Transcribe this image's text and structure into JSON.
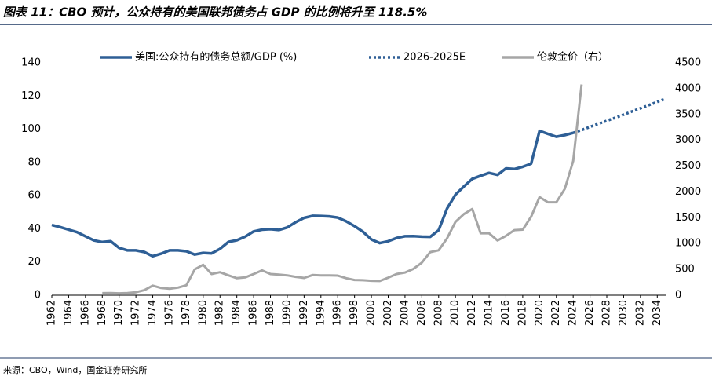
{
  "chart_data": {
    "type": "line",
    "title": "图表 11：CBO 预计，公众持有的美国联邦债务占 GDP 的比例将升至 118.5%",
    "source": "来源：CBO，Wind，国金证券研究所",
    "legend": "top",
    "xlim": [
      1962,
      2035
    ],
    "xticks": [
      1962,
      1964,
      1966,
      1968,
      1970,
      1972,
      1974,
      1976,
      1978,
      1980,
      1982,
      1984,
      1986,
      1988,
      1990,
      1992,
      1994,
      1996,
      1998,
      2000,
      2002,
      2004,
      2006,
      2008,
      2010,
      2012,
      2014,
      2016,
      2018,
      2020,
      2022,
      2024,
      2026,
      2028,
      2030,
      2032,
      2034
    ],
    "ylim": [
      0,
      140
    ],
    "yticks": [
      0,
      20,
      40,
      60,
      80,
      100,
      120,
      140
    ],
    "y2lim": [
      0,
      4500
    ],
    "y2ticks": [
      0,
      500,
      1000,
      1500,
      2000,
      2500,
      3000,
      3500,
      4000,
      4500
    ],
    "series": [
      {
        "name": "美国:公众持有的债务总额/GDP (%)",
        "color": "#2e5f96",
        "style": "solid",
        "x": [
          1962,
          1963,
          1964,
          1965,
          1966,
          1967,
          1968,
          1969,
          1970,
          1971,
          1972,
          1973,
          1974,
          1975,
          1976,
          1977,
          1978,
          1979,
          1980,
          1981,
          1982,
          1983,
          1984,
          1985,
          1986,
          1987,
          1988,
          1989,
          1990,
          1991,
          1992,
          1993,
          1994,
          1995,
          1996,
          1997,
          1998,
          1999,
          2000,
          2001,
          2002,
          2003,
          2004,
          2005,
          2006,
          2007,
          2008,
          2009,
          2010,
          2011,
          2012,
          2013,
          2014,
          2015,
          2016,
          2017,
          2018,
          2019,
          2020,
          2021,
          2022,
          2023,
          2024
        ],
        "values": [
          42.3,
          41,
          39.5,
          38,
          35.5,
          33,
          32,
          32.5,
          28.5,
          27,
          27,
          26,
          23.5,
          25,
          27,
          27,
          26.5,
          24.5,
          25.5,
          25.2,
          27.9,
          32.1,
          33.1,
          35.3,
          38.4,
          39.5,
          39.8,
          39.3,
          40.8,
          44,
          46.6,
          47.8,
          47.7,
          47.5,
          46.8,
          44.5,
          41.6,
          38.2,
          33.6,
          31.4,
          32.5,
          34.5,
          35.5,
          35.6,
          35.3,
          35.2,
          39.2,
          52.2,
          60.6,
          65.5,
          70.1,
          72,
          73.7,
          72.5,
          76.4,
          76,
          77.4,
          79.2,
          99,
          97.2,
          95.5,
          96.5,
          97.8
        ]
      },
      {
        "name": "2026-2025E",
        "color": "#2e5f96",
        "style": "dotted",
        "x": [
          2024,
          2025,
          2026,
          2027,
          2028,
          2029,
          2030,
          2031,
          2032,
          2033,
          2034,
          2035
        ],
        "values": [
          97.8,
          99.5,
          101.4,
          103.3,
          105.1,
          106.9,
          108.8,
          110.7,
          112.6,
          114.5,
          116.5,
          118.5
        ]
      },
      {
        "name": "伦敦金价（右）",
        "color": "#a6a6a6",
        "style": "solid",
        "axis": "y2",
        "x": [
          1968,
          1969,
          1970,
          1971,
          1972,
          1973,
          1974,
          1975,
          1976,
          1977,
          1978,
          1979,
          1980,
          1981,
          1982,
          1983,
          1984,
          1985,
          1986,
          1987,
          1988,
          1989,
          1990,
          1991,
          1992,
          1993,
          1994,
          1995,
          1996,
          1997,
          1998,
          1999,
          2000,
          2001,
          2002,
          2003,
          2004,
          2005,
          2006,
          2007,
          2008,
          2009,
          2010,
          2011,
          2012,
          2013,
          2014,
          2015,
          2016,
          2017,
          2018,
          2019,
          2020,
          2021,
          2022,
          2023,
          2024,
          2025
        ],
        "values": [
          39,
          41,
          36,
          41,
          58,
          97,
          185,
          140,
          125,
          148,
          193,
          500,
          590,
          410,
          445,
          385,
          330,
          345,
          410,
          480,
          410,
          400,
          385,
          355,
          335,
          390,
          385,
          385,
          380,
          330,
          295,
          290,
          280,
          275,
          340,
          410,
          440,
          510,
          630,
          835,
          870,
          1100,
          1420,
          1570,
          1670,
          1200,
          1200,
          1060,
          1150,
          1260,
          1270,
          1520,
          1900,
          1800,
          1800,
          2060,
          2600,
          4080
        ]
      }
    ]
  }
}
